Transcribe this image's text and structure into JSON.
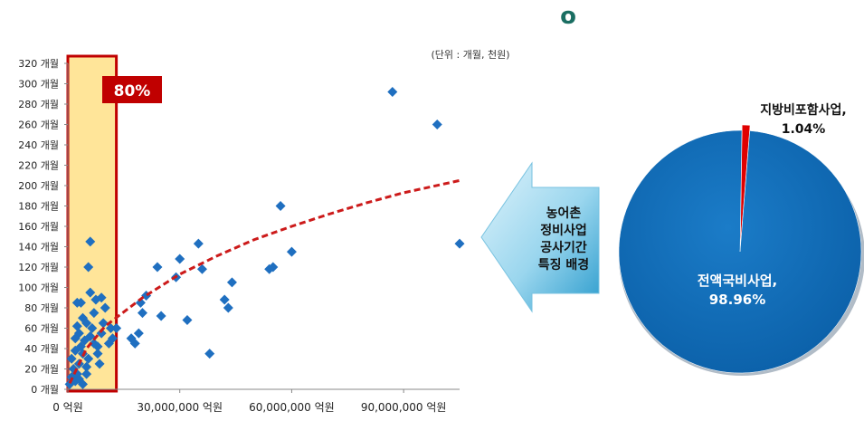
{
  "header_icon": "o",
  "unit_note": "(단위 : 개월, 천원)",
  "highlight_label": "80%",
  "arrow_text": [
    "농어촌",
    "정비사업",
    "공사기간",
    "특징 배경"
  ],
  "colors": {
    "points": "#1f6fc0",
    "trend": "#cc1a1a",
    "highlight_fill": "#ffe599",
    "highlight_border": "#c00000",
    "pie_main": "#0f6ab5",
    "pie_small": "#e00000"
  },
  "chart_data": [
    {
      "type": "scatter",
      "xlabel": "",
      "ylabel": "",
      "xlim": [
        0,
        105000000
      ],
      "ylim": [
        0,
        320
      ],
      "x_ticks": [
        0,
        30000000,
        60000000,
        90000000
      ],
      "x_tick_labels": [
        "0 억원",
        "30,000,000 억원",
        "60,000,000 억원",
        "90,000,000 억원"
      ],
      "y_ticks": [
        0,
        20,
        40,
        60,
        80,
        100,
        120,
        140,
        160,
        180,
        200,
        220,
        240,
        260,
        280,
        300,
        320
      ],
      "y_tick_labels": [
        "0 개월",
        "20 개월",
        "40 개월",
        "60 개월",
        "80 개월",
        "100 개월",
        "120 개월",
        "140 개월",
        "160 개월",
        "180 개월",
        "200 개월",
        "220 개월",
        "240 개월",
        "260 개월",
        "280 개월",
        "300 개월",
        "320 개월"
      ],
      "highlight_band_x": [
        0,
        13000000
      ],
      "trend": "logarithmic",
      "trend_points": [
        [
          500000,
          6
        ],
        [
          5000000,
          40
        ],
        [
          10000000,
          62
        ],
        [
          20000000,
          90
        ],
        [
          30000000,
          113
        ],
        [
          40000000,
          131
        ],
        [
          50000000,
          147
        ],
        [
          60000000,
          160
        ],
        [
          70000000,
          172
        ],
        [
          80000000,
          183
        ],
        [
          90000000,
          193
        ],
        [
          105000000,
          205
        ]
      ],
      "points": [
        [
          500000,
          5
        ],
        [
          1000000,
          12
        ],
        [
          1500000,
          20
        ],
        [
          1000000,
          30
        ],
        [
          2000000,
          8
        ],
        [
          2500000,
          15
        ],
        [
          3000000,
          25
        ],
        [
          2000000,
          38
        ],
        [
          3500000,
          42
        ],
        [
          3000000,
          55
        ],
        [
          2500000,
          62
        ],
        [
          4000000,
          35
        ],
        [
          4500000,
          48
        ],
        [
          5000000,
          22
        ],
        [
          5500000,
          30
        ],
        [
          4000000,
          70
        ],
        [
          5000000,
          65
        ],
        [
          3500000,
          85
        ],
        [
          2500000,
          85
        ],
        [
          6000000,
          52
        ],
        [
          6500000,
          60
        ],
        [
          7000000,
          75
        ],
        [
          6000000,
          95
        ],
        [
          7500000,
          88
        ],
        [
          8000000,
          42
        ],
        [
          8500000,
          25
        ],
        [
          9000000,
          55
        ],
        [
          9500000,
          65
        ],
        [
          10000000,
          80
        ],
        [
          9000000,
          90
        ],
        [
          11000000,
          45
        ],
        [
          11500000,
          60
        ],
        [
          12000000,
          50
        ],
        [
          13000000,
          60
        ],
        [
          6000000,
          145
        ],
        [
          5500000,
          120
        ],
        [
          3000000,
          10
        ],
        [
          4000000,
          5
        ],
        [
          5000000,
          15
        ],
        [
          7000000,
          45
        ],
        [
          8000000,
          35
        ],
        [
          2000000,
          50
        ],
        [
          17000000,
          50
        ],
        [
          18000000,
          45
        ],
        [
          19000000,
          55
        ],
        [
          20000000,
          75
        ],
        [
          19500000,
          85
        ],
        [
          21000000,
          92
        ],
        [
          24000000,
          120
        ],
        [
          25000000,
          72
        ],
        [
          29000000,
          110
        ],
        [
          30000000,
          128
        ],
        [
          32000000,
          68
        ],
        [
          35000000,
          143
        ],
        [
          36000000,
          118
        ],
        [
          38000000,
          35
        ],
        [
          42000000,
          88
        ],
        [
          43000000,
          80
        ],
        [
          44000000,
          105
        ],
        [
          54000000,
          118
        ],
        [
          55000000,
          120
        ],
        [
          57000000,
          180
        ],
        [
          60000000,
          135
        ],
        [
          87000000,
          292
        ],
        [
          99000000,
          260
        ],
        [
          105000000,
          143
        ]
      ]
    },
    {
      "type": "pie",
      "slices": [
        {
          "label": "전액국비사업,",
          "value_label": "98.96%",
          "value": 98.96
        },
        {
          "label": "지방비포함사업,",
          "value_label": "1.04%",
          "value": 1.04
        }
      ]
    }
  ]
}
